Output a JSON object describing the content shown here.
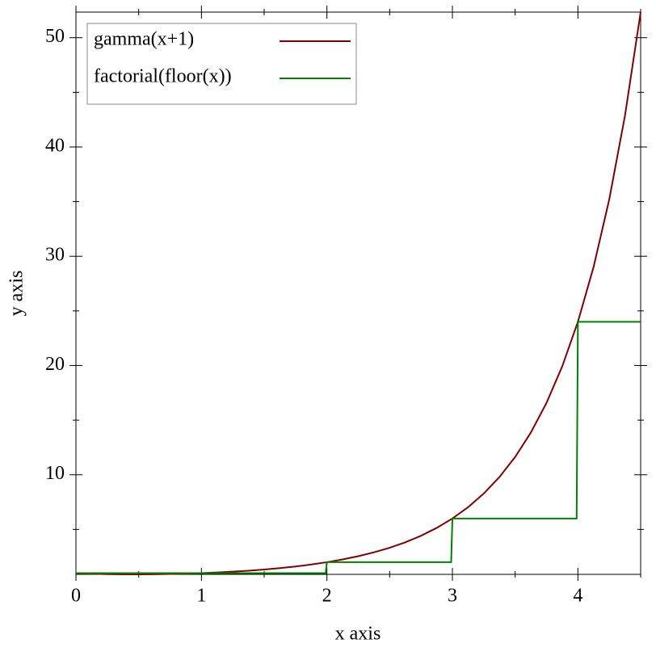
{
  "chart_data": {
    "type": "line",
    "xlabel": "x axis",
    "ylabel": "y axis",
    "xlim": [
      0,
      4.5
    ],
    "ylim": [
      0.8862,
      52.3428
    ],
    "xticks": [
      0,
      1,
      2,
      3,
      4
    ],
    "yticks": [
      10,
      20,
      30,
      40,
      50
    ],
    "xminorticks": [
      0.5,
      1.5,
      2.5,
      3.5,
      4.5
    ],
    "yminorticks": [
      5,
      15,
      25,
      35,
      45
    ],
    "legend": "upper left",
    "series": [
      {
        "name": "gamma(x+1)",
        "color": "#800000",
        "x": [
          0,
          0.125,
          0.25,
          0.375,
          0.5,
          0.625,
          0.75,
          0.875,
          1,
          1.125,
          1.25,
          1.375,
          1.5,
          1.625,
          1.75,
          1.875,
          2,
          2.125,
          2.25,
          2.375,
          2.5,
          2.625,
          2.75,
          2.875,
          3,
          3.125,
          3.25,
          3.375,
          3.5,
          3.625,
          3.75,
          3.875,
          4,
          4.125,
          4.25,
          4.375,
          4.5
        ],
        "values": [
          1,
          0.9417,
          0.9064,
          0.8889,
          0.8862,
          0.8966,
          0.9191,
          0.9537,
          1,
          1.0595,
          1.133,
          1.2222,
          1.3293,
          1.4569,
          1.6084,
          1.7882,
          2,
          2.2514,
          2.5493,
          2.9027,
          3.3234,
          3.8244,
          4.423,
          5.141,
          6,
          7.0355,
          8.2851,
          9.7967,
          11.6317,
          13.8636,
          16.5862,
          19.9213,
          24,
          29.0214,
          35.2116,
          42.8603,
          52.3428
        ]
      },
      {
        "name": "factorial(floor(x))",
        "color": "#008000",
        "x": [
          0,
          1.99,
          2,
          2.99,
          3,
          3.99,
          4,
          4.5
        ],
        "values": [
          1,
          1,
          2,
          2,
          6,
          6,
          24,
          24
        ]
      }
    ]
  }
}
